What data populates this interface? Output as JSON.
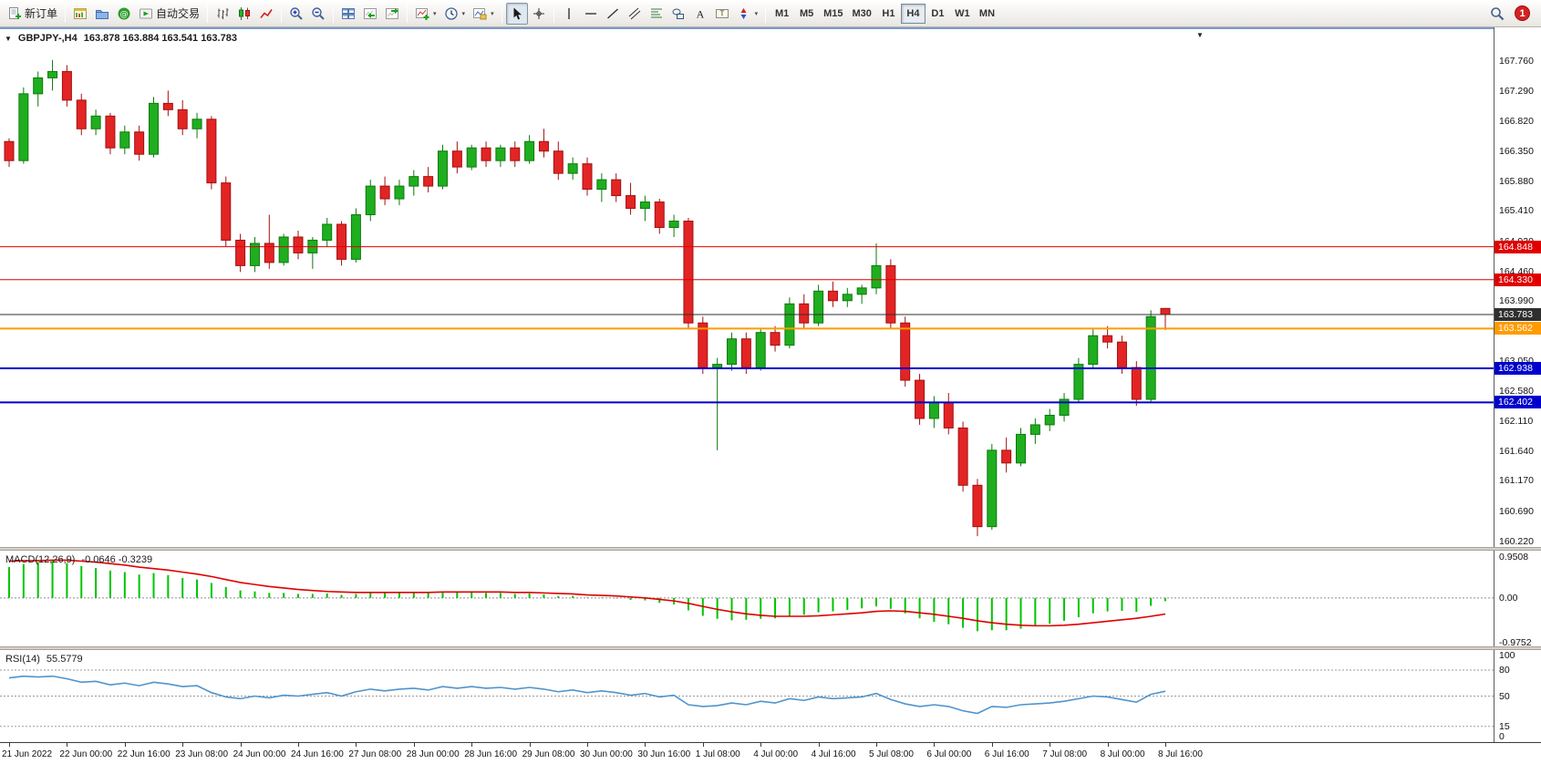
{
  "icons_text": {
    "collapse": "▼",
    "dropdown": "▾",
    "scroll_marker": "▼"
  },
  "toolbar": {
    "groups": [
      [
        {
          "name": "new-order",
          "label": "新订单",
          "icon": "new-order-icon"
        }
      ],
      [
        {
          "name": "new-chart",
          "icon": "new-chart-icon"
        },
        {
          "name": "profiles",
          "icon": "profiles-icon"
        },
        {
          "name": "community",
          "icon": "community-icon"
        },
        {
          "name": "auto-trading",
          "label": "自动交易",
          "icon": "autotrading-icon"
        }
      ],
      [
        {
          "name": "bar-chart",
          "icon": "bars-chart-icon"
        },
        {
          "name": "candle-chart",
          "icon": "candles-chart-icon"
        },
        {
          "name": "line-chart",
          "icon": "line-chart-icon"
        }
      ],
      [
        {
          "name": "zoom-in",
          "icon": "zoom-in-icon"
        },
        {
          "name": "zoom-out",
          "icon": "zoom-out-icon"
        }
      ],
      [
        {
          "name": "tile-windows",
          "icon": "tile-windows-icon"
        },
        {
          "name": "auto-scroll",
          "icon": "auto-scroll-icon"
        },
        {
          "name": "chart-shift",
          "icon": "chart-shift-icon"
        }
      ],
      [
        {
          "name": "indicators",
          "icon": "indicators-icon",
          "dropdown": true
        },
        {
          "name": "periods",
          "icon": "periods-icon",
          "dropdown": true
        },
        {
          "name": "templates",
          "icon": "templates-icon",
          "dropdown": true
        }
      ],
      [
        {
          "name": "cursor",
          "icon": "cursor-icon",
          "active": true
        },
        {
          "name": "crosshair",
          "icon": "crosshair-icon"
        }
      ],
      [
        {
          "name": "vertical-line",
          "icon": "vline-icon"
        },
        {
          "name": "horizontal-line",
          "icon": "hline-icon"
        },
        {
          "name": "trendline",
          "icon": "trendline-icon"
        },
        {
          "name": "channel",
          "icon": "channel-icon"
        },
        {
          "name": "fibonacci",
          "icon": "fibonacci-icon"
        },
        {
          "name": "shapes",
          "icon": "shapes-icon"
        },
        {
          "name": "text",
          "icon": "text-icon"
        },
        {
          "name": "text-label",
          "icon": "label-icon"
        },
        {
          "name": "arrows",
          "icon": "arrows-icon",
          "dropdown": true
        }
      ]
    ],
    "timeframes": [
      "M1",
      "M5",
      "M15",
      "M30",
      "H1",
      "H4",
      "D1",
      "W1",
      "MN"
    ],
    "active_timeframe": "H4",
    "notification_count": "1"
  },
  "chart": {
    "symbol_period": "GBPJPY-,H4",
    "ohlc": "163.878 163.884 163.541 163.783",
    "price_axis_labels": [
      "167.760",
      "167.290",
      "166.820",
      "166.350",
      "165.880",
      "165.410",
      "164.930",
      "164.460",
      "163.990",
      "163.520",
      "163.050",
      "162.580",
      "162.110",
      "161.640",
      "161.170",
      "160.690",
      "160.220"
    ],
    "hlines": [
      {
        "price": 164.848,
        "label": "164.848",
        "color": "#e00000",
        "width": 1
      },
      {
        "price": 164.33,
        "label": "164.330",
        "color": "#e00000",
        "width": 1
      },
      {
        "price": 163.783,
        "label": "163.783",
        "color": "#2f2f2f",
        "width": 1
      },
      {
        "price": 163.562,
        "label": "163.562",
        "color": "#ff9b00",
        "width": 2
      },
      {
        "price": 162.938,
        "label": "162.938",
        "color": "#0000cc",
        "width": 2
      },
      {
        "price": 162.402,
        "label": "162.402",
        "color": "#0000cc",
        "width": 2
      }
    ],
    "time_axis_labels": [
      "21 Jun 2022",
      "22 Jun 00:00",
      "22 Jun 16:00",
      "23 Jun 08:00",
      "24 Jun 00:00",
      "24 Jun 16:00",
      "27 Jun 08:00",
      "28 Jun 00:00",
      "28 Jun 16:00",
      "29 Jun 08:00",
      "30 Jun 00:00",
      "30 Jun 16:00",
      "1 Jul 08:00",
      "4 Jul 00:00",
      "4 Jul 16:00",
      "5 Jul 08:00",
      "6 Jul 00:00",
      "6 Jul 16:00",
      "7 Jul 08:00",
      "8 Jul 00:00",
      "8 Jul 16:00"
    ]
  },
  "macd": {
    "name": "MACD(12,26,9)",
    "values_text": "-0.0646 -0.3239",
    "axis_labels": [
      "0.9508",
      "0.00",
      "-0.9752"
    ]
  },
  "rsi": {
    "name": "RSI(14)",
    "value_text": "55.5779",
    "axis_labels": [
      "100",
      "80",
      "50",
      "15",
      "0"
    ],
    "levels": [
      80,
      50,
      15
    ]
  },
  "chart_data": {
    "type": "candlestick",
    "symbol": "GBPJPY-",
    "timeframe": "H4",
    "price_range": [
      160.13,
      168.265
    ],
    "candles_per_label": 4,
    "candles_ohlc": [
      [
        166.5,
        166.55,
        166.1,
        166.2
      ],
      [
        166.2,
        167.35,
        166.15,
        167.25
      ],
      [
        167.25,
        167.6,
        167.05,
        167.5
      ],
      [
        167.5,
        167.78,
        167.3,
        167.6
      ],
      [
        167.6,
        167.7,
        167.05,
        167.15
      ],
      [
        167.15,
        167.25,
        166.6,
        166.7
      ],
      [
        166.7,
        167.0,
        166.6,
        166.9
      ],
      [
        166.9,
        166.95,
        166.3,
        166.4
      ],
      [
        166.4,
        166.75,
        166.3,
        166.65
      ],
      [
        166.65,
        166.75,
        166.2,
        166.3
      ],
      [
        166.3,
        167.2,
        166.25,
        167.1
      ],
      [
        167.1,
        167.3,
        166.9,
        167.0
      ],
      [
        167.0,
        167.15,
        166.6,
        166.7
      ],
      [
        166.7,
        166.95,
        166.55,
        166.85
      ],
      [
        166.85,
        166.9,
        165.75,
        165.85
      ],
      [
        165.85,
        165.95,
        164.85,
        164.95
      ],
      [
        164.95,
        165.05,
        164.45,
        164.55
      ],
      [
        164.55,
        165.0,
        164.45,
        164.9
      ],
      [
        164.9,
        165.35,
        164.5,
        164.6
      ],
      [
        164.6,
        165.05,
        164.55,
        165.0
      ],
      [
        165.0,
        165.1,
        164.65,
        164.75
      ],
      [
        164.75,
        165.0,
        164.5,
        164.95
      ],
      [
        164.95,
        165.3,
        164.85,
        165.2
      ],
      [
        165.2,
        165.25,
        164.55,
        164.65
      ],
      [
        164.65,
        165.45,
        164.6,
        165.35
      ],
      [
        165.35,
        165.9,
        165.25,
        165.8
      ],
      [
        165.8,
        165.95,
        165.5,
        165.6
      ],
      [
        165.6,
        165.9,
        165.5,
        165.8
      ],
      [
        165.8,
        166.05,
        165.65,
        165.95
      ],
      [
        165.95,
        166.1,
        165.7,
        165.8
      ],
      [
        165.8,
        166.45,
        165.75,
        166.35
      ],
      [
        166.35,
        166.5,
        166.0,
        166.1
      ],
      [
        166.1,
        166.45,
        166.05,
        166.4
      ],
      [
        166.4,
        166.5,
        166.1,
        166.2
      ],
      [
        166.2,
        166.45,
        166.1,
        166.4
      ],
      [
        166.4,
        166.5,
        166.1,
        166.2
      ],
      [
        166.2,
        166.6,
        166.15,
        166.5
      ],
      [
        166.5,
        166.7,
        166.25,
        166.35
      ],
      [
        166.35,
        166.5,
        165.9,
        166.0
      ],
      [
        166.0,
        166.25,
        165.9,
        166.15
      ],
      [
        166.15,
        166.25,
        165.65,
        165.75
      ],
      [
        165.75,
        166.0,
        165.55,
        165.9
      ],
      [
        165.9,
        166.0,
        165.55,
        165.65
      ],
      [
        165.65,
        165.85,
        165.35,
        165.45
      ],
      [
        165.45,
        165.65,
        165.25,
        165.55
      ],
      [
        165.55,
        165.6,
        165.05,
        165.15
      ],
      [
        165.15,
        165.35,
        165.0,
        165.25
      ],
      [
        165.25,
        165.3,
        163.55,
        163.65
      ],
      [
        163.65,
        163.75,
        162.85,
        162.95
      ],
      [
        162.95,
        163.1,
        161.65,
        163.0
      ],
      [
        163.0,
        163.5,
        162.9,
        163.4
      ],
      [
        163.4,
        163.5,
        162.85,
        162.95
      ],
      [
        162.95,
        163.55,
        162.9,
        163.5
      ],
      [
        163.5,
        163.6,
        163.2,
        163.3
      ],
      [
        163.3,
        164.05,
        163.25,
        163.95
      ],
      [
        163.95,
        164.1,
        163.55,
        163.65
      ],
      [
        163.65,
        164.25,
        163.6,
        164.15
      ],
      [
        164.15,
        164.3,
        163.9,
        164.0
      ],
      [
        164.0,
        164.2,
        163.9,
        164.1
      ],
      [
        164.1,
        164.25,
        163.95,
        164.2
      ],
      [
        164.2,
        164.9,
        164.1,
        164.55
      ],
      [
        164.55,
        164.65,
        163.55,
        163.65
      ],
      [
        163.65,
        163.75,
        162.65,
        162.75
      ],
      [
        162.75,
        162.85,
        162.05,
        162.15
      ],
      [
        162.15,
        162.5,
        162.0,
        162.4
      ],
      [
        162.4,
        162.55,
        161.9,
        162.0
      ],
      [
        162.0,
        162.1,
        161.0,
        161.1
      ],
      [
        161.1,
        161.2,
        160.3,
        160.45
      ],
      [
        160.45,
        161.75,
        160.4,
        161.65
      ],
      [
        161.65,
        161.85,
        161.3,
        161.45
      ],
      [
        161.45,
        162.0,
        161.4,
        161.9
      ],
      [
        161.9,
        162.15,
        161.75,
        162.05
      ],
      [
        162.05,
        162.3,
        161.95,
        162.2
      ],
      [
        162.2,
        162.55,
        162.1,
        162.45
      ],
      [
        162.45,
        163.1,
        162.4,
        163.0
      ],
      [
        163.0,
        163.55,
        162.95,
        163.45
      ],
      [
        163.45,
        163.6,
        163.25,
        163.35
      ],
      [
        163.35,
        163.45,
        162.85,
        162.95
      ],
      [
        162.95,
        163.05,
        162.35,
        162.45
      ],
      [
        162.45,
        163.85,
        162.4,
        163.75
      ],
      [
        163.878,
        163.884,
        163.541,
        163.783
      ]
    ],
    "macd_range": [
      -0.9752,
      0.9508
    ],
    "macd_histogram": [
      0.62,
      0.68,
      0.72,
      0.74,
      0.7,
      0.64,
      0.6,
      0.55,
      0.52,
      0.47,
      0.5,
      0.46,
      0.4,
      0.37,
      0.3,
      0.22,
      0.15,
      0.13,
      0.1,
      0.1,
      0.08,
      0.08,
      0.09,
      0.06,
      0.08,
      0.11,
      0.1,
      0.1,
      0.11,
      0.1,
      0.13,
      0.11,
      0.12,
      0.1,
      0.1,
      0.08,
      0.09,
      0.07,
      0.04,
      0.04,
      0.01,
      0.01,
      -0.01,
      -0.04,
      -0.05,
      -0.1,
      -0.13,
      -0.25,
      -0.36,
      -0.42,
      -0.45,
      -0.44,
      -0.42,
      -0.41,
      -0.37,
      -0.34,
      -0.29,
      -0.27,
      -0.24,
      -0.21,
      -0.17,
      -0.22,
      -0.31,
      -0.41,
      -0.48,
      -0.53,
      -0.6,
      -0.67,
      -0.65,
      -0.65,
      -0.62,
      -0.57,
      -0.52,
      -0.46,
      -0.39,
      -0.31,
      -0.27,
      -0.26,
      -0.28,
      -0.16,
      -0.0646
    ],
    "macd_signal": [
      0.74,
      0.75,
      0.75,
      0.76,
      0.76,
      0.74,
      0.72,
      0.69,
      0.66,
      0.62,
      0.59,
      0.56,
      0.52,
      0.48,
      0.43,
      0.37,
      0.31,
      0.27,
      0.23,
      0.2,
      0.17,
      0.15,
      0.13,
      0.12,
      0.11,
      0.11,
      0.11,
      0.11,
      0.11,
      0.11,
      0.12,
      0.12,
      0.12,
      0.12,
      0.12,
      0.11,
      0.11,
      0.1,
      0.09,
      0.08,
      0.06,
      0.05,
      0.04,
      0.02,
      0.0,
      -0.03,
      -0.06,
      -0.11,
      -0.17,
      -0.23,
      -0.28,
      -0.32,
      -0.35,
      -0.37,
      -0.37,
      -0.37,
      -0.36,
      -0.34,
      -0.32,
      -0.3,
      -0.27,
      -0.26,
      -0.27,
      -0.3,
      -0.33,
      -0.37,
      -0.41,
      -0.46,
      -0.5,
      -0.53,
      -0.55,
      -0.56,
      -0.56,
      -0.55,
      -0.53,
      -0.5,
      -0.47,
      -0.44,
      -0.41,
      -0.37,
      -0.3239
    ],
    "rsi_range": [
      0,
      100
    ],
    "rsi_values": [
      71,
      73,
      72,
      73,
      70,
      66,
      67,
      63,
      65,
      62,
      66,
      64,
      61,
      62,
      54,
      49,
      47,
      50,
      48,
      51,
      50,
      52,
      54,
      50,
      55,
      58,
      56,
      58,
      59,
      57,
      61,
      59,
      61,
      59,
      60,
      58,
      60,
      58,
      55,
      57,
      54,
      56,
      54,
      51,
      53,
      49,
      51,
      40,
      38,
      39,
      42,
      40,
      44,
      42,
      47,
      45,
      49,
      47,
      48,
      49,
      53,
      46,
      41,
      38,
      40,
      38,
      33,
      30,
      38,
      37,
      40,
      41,
      42,
      44,
      47,
      50,
      49,
      46,
      43,
      52,
      55.58
    ],
    "colors": {
      "up": "#1fae1f",
      "down": "#e32424",
      "up_stroke": "#0d790d",
      "down_stroke": "#a31111",
      "macd_hist": "#00c400",
      "macd_signal": "#e00000",
      "rsi_line": "#4f94cd"
    }
  }
}
